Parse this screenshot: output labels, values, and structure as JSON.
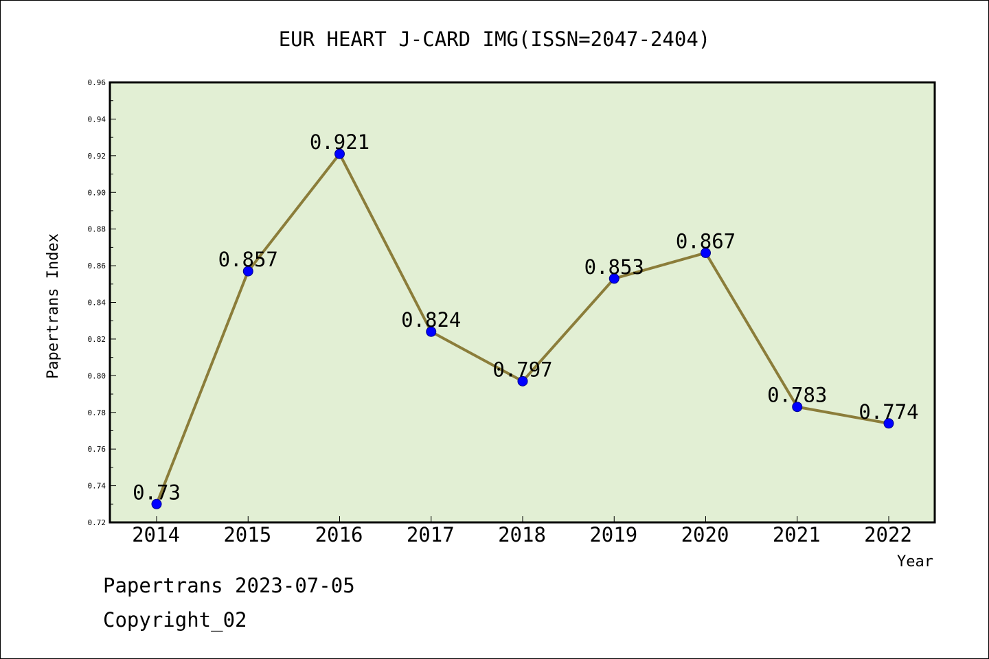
{
  "chart_data": {
    "type": "line",
    "title": "EUR HEART J-CARD IMG(ISSN=2047-2404)",
    "xlabel": "Year",
    "ylabel": "Papertrans Index",
    "categories": [
      "2014",
      "2015",
      "2016",
      "2017",
      "2018",
      "2019",
      "2020",
      "2021",
      "2022"
    ],
    "values": [
      0.73,
      0.857,
      0.921,
      0.824,
      0.797,
      0.853,
      0.867,
      0.783,
      0.774
    ],
    "data_labels": [
      "0.73",
      "0.857",
      "0.921",
      "0.824",
      "0.797",
      "0.853",
      "0.867",
      "0.783",
      "0.774"
    ],
    "ylim": [
      0.72,
      0.96
    ],
    "yticks": [
      "0.72",
      "0.74",
      "0.76",
      "0.78",
      "0.80",
      "0.82",
      "0.84",
      "0.86",
      "0.88",
      "0.90",
      "0.92",
      "0.94",
      "0.96"
    ],
    "grid": false,
    "colors": {
      "plot_background": "#e2efd4",
      "line": "#8b7d3a",
      "marker": "#0000ff",
      "marker_edge": "#00008b"
    }
  },
  "footer": {
    "line1": "Papertrans 2023-07-05",
    "line2": "Copyright_02"
  }
}
